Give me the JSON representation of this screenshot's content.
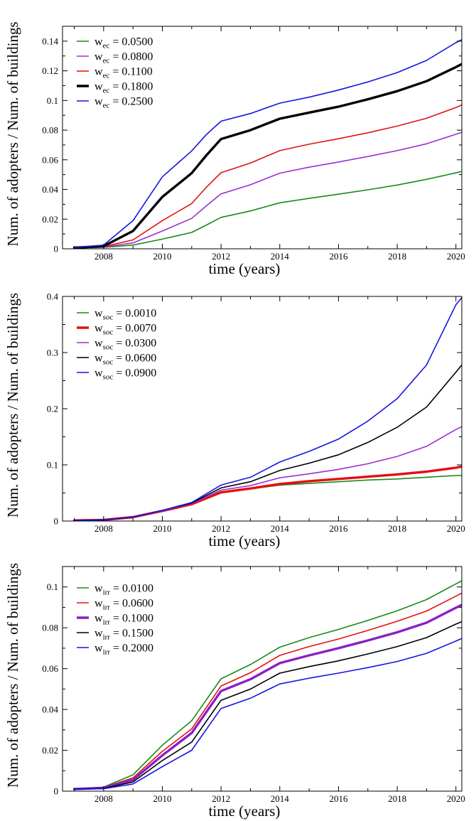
{
  "chart_data": [
    {
      "type": "line",
      "xlabel": "time (years)",
      "ylabel": "Num. of adopters / Num. of buildings",
      "xlim": [
        2006.6,
        2020.2
      ],
      "ylim": [
        0,
        0.15
      ],
      "xticks": [
        2008,
        2010,
        2012,
        2014,
        2016,
        2018,
        2020
      ],
      "yticks": [
        0,
        0.02,
        0.04,
        0.06,
        0.08,
        0.1,
        0.12,
        0.14
      ],
      "ytick_labels": [
        "0",
        "0.02",
        "0.04",
        "0.06",
        "0.08",
        "0.1",
        "0.12",
        "0.14"
      ],
      "legend_position": "top-left",
      "x": [
        2007,
        2008,
        2009,
        2010,
        2011,
        2011.5,
        2012,
        2013,
        2014,
        2015,
        2016,
        2017,
        2018,
        2019,
        2020,
        2020.2
      ],
      "series": [
        {
          "name": "w_ec = 0.0500",
          "label_main": "w",
          "label_sub": "ec",
          "label_val": " = 0.0500",
          "color": "#1a8a1a",
          "width": 1.6,
          "values": [
            0.0005,
            0.001,
            0.0025,
            0.0065,
            0.011,
            0.016,
            0.0212,
            0.0255,
            0.031,
            0.034,
            0.0368,
            0.0398,
            0.043,
            0.0468,
            0.0512,
            0.0522
          ]
        },
        {
          "name": "w_ec = 0.0800",
          "label_main": "w",
          "label_sub": "ec",
          "label_val": " = 0.0800",
          "color": "#9b30d0",
          "width": 1.6,
          "values": [
            0.0005,
            0.0012,
            0.004,
            0.012,
            0.0205,
            0.029,
            0.037,
            0.0432,
            0.051,
            0.055,
            0.0585,
            0.0622,
            0.0662,
            0.0708,
            0.0772,
            0.0785
          ]
        },
        {
          "name": "w_ec = 0.1100",
          "label_main": "w",
          "label_sub": "ec",
          "label_val": " = 0.1100",
          "color": "#e31010",
          "width": 1.6,
          "values": [
            0.0006,
            0.0015,
            0.006,
            0.019,
            0.0305,
            0.0415,
            0.0513,
            0.0578,
            0.0662,
            0.0705,
            0.0742,
            0.0782,
            0.0827,
            0.088,
            0.0952,
            0.097
          ]
        },
        {
          "name": "w_ec = 0.1800",
          "label_main": "w",
          "label_sub": "ec",
          "label_val": " = 0.1800",
          "color": "#000000",
          "width": 3.4,
          "values": [
            0.0007,
            0.0018,
            0.012,
            0.035,
            0.051,
            0.063,
            0.074,
            0.08,
            0.0877,
            0.0918,
            0.0958,
            0.1008,
            0.1063,
            0.113,
            0.1225,
            0.1245
          ]
        },
        {
          "name": "w_ec = 0.2500",
          "label_main": "w",
          "label_sub": "ec",
          "label_val": " = 0.2500",
          "color": "#1515e0",
          "width": 1.6,
          "values": [
            0.0008,
            0.0025,
            0.019,
            0.0485,
            0.066,
            0.077,
            0.086,
            0.0912,
            0.0982,
            0.1022,
            0.107,
            0.1125,
            0.1188,
            0.127,
            0.139,
            0.141
          ]
        }
      ]
    },
    {
      "type": "line",
      "xlabel": "time (years)",
      "ylabel": "Num. of adopters / Num. of buildings",
      "xlim": [
        2006.6,
        2020.2
      ],
      "ylim": [
        0,
        0.4
      ],
      "xticks": [
        2008,
        2010,
        2012,
        2014,
        2016,
        2018,
        2020
      ],
      "yticks": [
        0,
        0.1,
        0.2,
        0.3,
        0.4
      ],
      "ytick_labels": [
        "0",
        "0.1",
        "0.2",
        "0.3",
        "0.4"
      ],
      "legend_position": "top-left",
      "x": [
        2007,
        2008,
        2009,
        2010,
        2011,
        2012,
        2013,
        2014,
        2015,
        2016,
        2017,
        2018,
        2019,
        2020,
        2020.2
      ],
      "series": [
        {
          "name": "w_soc = 0.0010",
          "label_main": "w",
          "label_sub": "soc",
          "label_val": " = 0.0010",
          "color": "#1a8a1a",
          "width": 1.6,
          "values": [
            0.001,
            0.002,
            0.007,
            0.018,
            0.03,
            0.051,
            0.057,
            0.064,
            0.067,
            0.07,
            0.073,
            0.075,
            0.078,
            0.081,
            0.081
          ]
        },
        {
          "name": "w_soc = 0.0070",
          "label_main": "w",
          "label_sub": "soc",
          "label_val": " = 0.0070",
          "color": "#e31010",
          "width": 3.4,
          "values": [
            0.001,
            0.002,
            0.007,
            0.018,
            0.03,
            0.051,
            0.058,
            0.066,
            0.071,
            0.075,
            0.079,
            0.083,
            0.088,
            0.095,
            0.097
          ]
        },
        {
          "name": "w_soc = 0.0300",
          "label_main": "w",
          "label_sub": "soc",
          "label_val": " = 0.0300",
          "color": "#9b30d0",
          "width": 1.6,
          "values": [
            0.001,
            0.002,
            0.007,
            0.018,
            0.031,
            0.055,
            0.063,
            0.077,
            0.084,
            0.092,
            0.102,
            0.115,
            0.133,
            0.163,
            0.168
          ]
        },
        {
          "name": "w_soc = 0.0600",
          "label_main": "w",
          "label_sub": "soc",
          "label_val": " = 0.0600",
          "color": "#000000",
          "width": 1.6,
          "values": [
            0.001,
            0.002,
            0.007,
            0.019,
            0.032,
            0.059,
            0.07,
            0.09,
            0.103,
            0.118,
            0.14,
            0.167,
            0.203,
            0.265,
            0.278
          ]
        },
        {
          "name": "w_soc = 0.0900",
          "label_main": "w",
          "label_sub": "soc",
          "label_val": " = 0.0900",
          "color": "#1515e0",
          "width": 1.6,
          "values": [
            0.001,
            0.002,
            0.007,
            0.019,
            0.033,
            0.064,
            0.078,
            0.105,
            0.124,
            0.146,
            0.178,
            0.218,
            0.278,
            0.385,
            0.398
          ]
        }
      ]
    },
    {
      "type": "line",
      "xlabel": "time (years)",
      "ylabel": "Num. of adopters / Num. of buildings",
      "xlim": [
        2006.6,
        2020.2
      ],
      "ylim": [
        0,
        0.11
      ],
      "xticks": [
        2008,
        2010,
        2012,
        2014,
        2016,
        2018,
        2020
      ],
      "yticks": [
        0,
        0.02,
        0.04,
        0.06,
        0.08,
        0.1
      ],
      "ytick_labels": [
        "0",
        "0.02",
        "0.04",
        "0.06",
        "0.08",
        "0.1"
      ],
      "legend_position": "top-left",
      "x": [
        2007,
        2008,
        2009,
        2010,
        2011,
        2012,
        2013,
        2014,
        2015,
        2016,
        2017,
        2018,
        2019,
        2020,
        2020.2
      ],
      "series": [
        {
          "name": "w_irr = 0.0100",
          "label_main": "w",
          "label_sub": "irr",
          "label_val": " = 0.0100",
          "color": "#1a8a1a",
          "width": 1.6,
          "values": [
            0.001,
            0.002,
            0.008,
            0.0225,
            0.0345,
            0.055,
            0.062,
            0.0705,
            0.0752,
            0.0792,
            0.0836,
            0.0883,
            0.0938,
            0.1015,
            0.103
          ]
        },
        {
          "name": "w_irr = 0.0600",
          "label_main": "w",
          "label_sub": "irr",
          "label_val": " = 0.0600",
          "color": "#e31010",
          "width": 1.6,
          "values": [
            0.001,
            0.0018,
            0.0065,
            0.0195,
            0.0305,
            0.0515,
            0.058,
            0.0665,
            0.0708,
            0.0745,
            0.0787,
            0.0832,
            0.0882,
            0.0955,
            0.097
          ]
        },
        {
          "name": "w_irr = 0.1000",
          "label_main": "w",
          "label_sub": "irr",
          "label_val": " = 0.1000",
          "color": "#8a1fc8",
          "width": 3.4,
          "values": [
            0.001,
            0.0016,
            0.0055,
            0.0175,
            0.0285,
            0.049,
            0.0548,
            0.0627,
            0.0665,
            0.07,
            0.0738,
            0.0778,
            0.0825,
            0.0898,
            0.0912
          ]
        },
        {
          "name": "w_irr = 0.1500",
          "label_main": "w",
          "label_sub": "irr",
          "label_val": " = 0.1500",
          "color": "#000000",
          "width": 1.6,
          "values": [
            0.001,
            0.0014,
            0.0045,
            0.015,
            0.024,
            0.0445,
            0.05,
            0.0578,
            0.061,
            0.0638,
            0.0672,
            0.0708,
            0.0752,
            0.0818,
            0.083
          ]
        },
        {
          "name": "w_irr = 0.2000",
          "label_main": "w",
          "label_sub": "irr",
          "label_val": " = 0.2000",
          "color": "#1515e0",
          "width": 1.6,
          "values": [
            0.001,
            0.0012,
            0.0035,
            0.012,
            0.02,
            0.0405,
            0.0455,
            0.0525,
            0.0553,
            0.0578,
            0.0605,
            0.0635,
            0.0675,
            0.0735,
            0.0748
          ]
        }
      ]
    }
  ]
}
